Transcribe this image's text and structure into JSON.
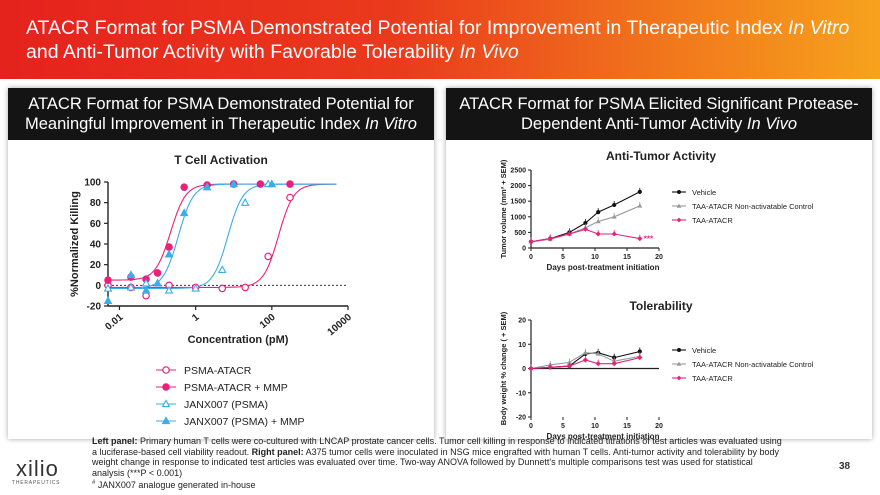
{
  "banner": {
    "title_part1": "ATACR Format for PSMA Demonstrated Potential for Improvement in Therapeutic Index ",
    "title_it1": "In Vitro",
    "title_part2": " and Anti-Tumor Activity with Favorable Tolerability ",
    "title_it2": "In Vivo"
  },
  "left_panel": {
    "header_text": "ATACR Format for PSMA Demonstrated Potential for Meaningful Improvement in Therapeutic Index ",
    "header_italic": "In Vitro"
  },
  "right_panel": {
    "header_text": "ATACR Format for PSMA Elicited Significant Protease-Dependent Anti-Tumor Activity ",
    "header_italic": "In Vivo"
  },
  "colors": {
    "pink": "#e8227c",
    "light_pink": "#f08ab5",
    "cyan": "#3aaee8",
    "black": "#111111",
    "gray": "#9a9a9a"
  },
  "chart_data": [
    {
      "type": "scatter",
      "title": "T Cell Activation",
      "xlabel": "Concentration (pM)",
      "ylabel": "%Normalized  Killing",
      "xscale": "log",
      "xticks": [
        "0.01",
        "1",
        "100",
        "10000"
      ],
      "yticks": [
        "-20",
        "0",
        "20",
        "40",
        "60",
        "80",
        "100"
      ],
      "ylim": [
        -20,
        100
      ],
      "legend_position": "bottom-left",
      "series": [
        {
          "name": "PSMA-ATACR",
          "marker": "open-circle",
          "color": "#e8227c",
          "x": [
            0.005,
            0.02,
            0.05,
            0.2,
            1,
            5,
            20,
            80,
            300
          ],
          "y": [
            0,
            -2,
            -10,
            0,
            -2,
            -3,
            -2,
            28,
            85
          ]
        },
        {
          "name": "PSMA-ATACR + MMP",
          "marker": "filled-circle",
          "color": "#e8227c",
          "x": [
            0.005,
            0.02,
            0.05,
            0.1,
            0.2,
            0.5,
            2,
            10,
            50,
            300
          ],
          "y": [
            5,
            8,
            6,
            12,
            37,
            95,
            97,
            98,
            98,
            98
          ]
        },
        {
          "name": "JANX007# (PSMA)",
          "marker": "open-triangle",
          "color": "#3aaee8",
          "x": [
            0.005,
            0.02,
            0.05,
            0.2,
            1,
            5,
            20,
            80
          ],
          "y": [
            -3,
            -2,
            2,
            -5,
            -3,
            15,
            80,
            98
          ]
        },
        {
          "name": "JANX007# (PSMA) + MMP",
          "marker": "filled-triangle",
          "color": "#3aaee8",
          "x": [
            0.005,
            0.02,
            0.05,
            0.1,
            0.2,
            0.5,
            2,
            10,
            100
          ],
          "y": [
            -15,
            10,
            -5,
            2,
            30,
            70,
            95,
            98,
            98
          ]
        }
      ]
    },
    {
      "type": "line",
      "title": "Anti-Tumor Activity",
      "xlabel": "Days post-treatment initiation",
      "ylabel": "Tumor volume (mm³ + SEM)",
      "xlim": [
        0,
        20
      ],
      "ylim": [
        0,
        2500
      ],
      "xticks": [
        "0",
        "5",
        "10",
        "15",
        "20"
      ],
      "yticks": [
        "0",
        "500",
        "1000",
        "1500",
        "2000",
        "2500"
      ],
      "series": [
        {
          "name": "Vehicle",
          "color": "#111111",
          "x": [
            0,
            3,
            6,
            8.5,
            10.5,
            13,
            17
          ],
          "y": [
            200,
            300,
            500,
            800,
            1150,
            1380,
            1800
          ]
        },
        {
          "name": "TAA-ATACR Non-activatable Control",
          "color": "#9a9a9a",
          "x": [
            0,
            3,
            6,
            8.5,
            10.5,
            13,
            17
          ],
          "y": [
            200,
            280,
            450,
            650,
            850,
            1000,
            1350
          ]
        },
        {
          "name": "TAA-ATACR",
          "color": "#e8227c",
          "x": [
            0,
            3,
            6,
            8.5,
            10.5,
            13,
            17
          ],
          "y": [
            200,
            300,
            450,
            600,
            450,
            450,
            300
          ]
        }
      ],
      "significance": "***"
    },
    {
      "type": "line",
      "title": "Tolerability",
      "xlabel": "Days post-treatment initiation",
      "ylabel": "Body weight % change ( + SEM)",
      "xlim": [
        0,
        20
      ],
      "ylim": [
        -20,
        20
      ],
      "xticks": [
        "0",
        "5",
        "10",
        "15",
        "20"
      ],
      "yticks": [
        "-20",
        "-10",
        "0",
        "10",
        "20"
      ],
      "series": [
        {
          "name": "Vehicle",
          "color": "#111111",
          "x": [
            0,
            3,
            6,
            8.5,
            10.5,
            13,
            17
          ],
          "y": [
            0,
            0.5,
            1,
            6,
            6.5,
            4.5,
            7
          ]
        },
        {
          "name": "TAA-ATACR Non-activatable Control",
          "color": "#9a9a9a",
          "x": [
            0,
            3,
            6,
            8.5,
            10.5,
            13,
            17
          ],
          "y": [
            0,
            1.5,
            2.5,
            6.5,
            6,
            3,
            5
          ]
        },
        {
          "name": "TAA-ATACR",
          "color": "#e8227c",
          "x": [
            0,
            3,
            6,
            8.5,
            10.5,
            13,
            17
          ],
          "y": [
            0,
            0.5,
            1,
            3.5,
            2,
            2,
            4.5
          ]
        }
      ]
    }
  ],
  "footnote": {
    "left_label": "Left panel:",
    "left_text": " Primary human T cells were co-cultured with LNCAP prostate cancer cells. Tumor cell killing in response to indicated titrations of test articles was evaluated using a luciferase-based cell viability readout. ",
    "right_label": "Right panel:",
    "right_text": " A375 tumor cells were inoculated in NSG mice engrafted with human T cells. Anti-tumor activity and tolerability by body weight change in response to indicated test articles was evaluated over time. Two-way ANOVA followed by Dunnett's multiple comparisons test was used for statistical analysis (***P < 0.001)",
    "hash_note": " JANX007 analogue generated in-house"
  },
  "logo": {
    "text": "xilio",
    "sub": "THERAPEUTICS"
  },
  "page_number": "38"
}
